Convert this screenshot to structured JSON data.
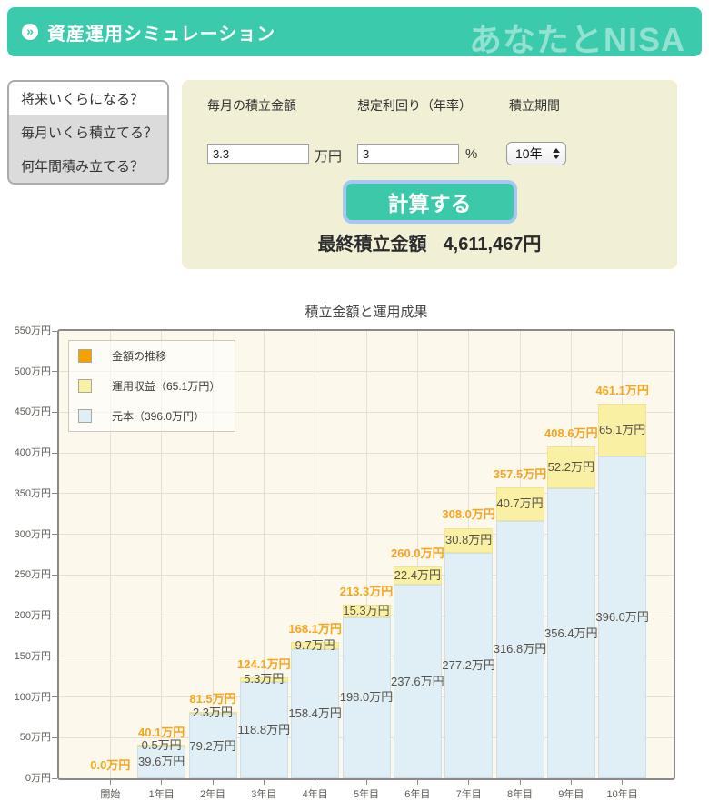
{
  "header": {
    "title": "資産運用シミュレーション",
    "brand": "あなたとNISA"
  },
  "sidebar": {
    "items": [
      {
        "label": "将来いくらになる？"
      },
      {
        "label": "毎月いくら積立てる？"
      },
      {
        "label": "何年間積み立てる？"
      }
    ]
  },
  "form": {
    "monthly_amount": {
      "label": "毎月の積立金額",
      "value": "3.3",
      "unit": "万円"
    },
    "rate": {
      "label": "想定利回り（年率）",
      "value": "3",
      "unit": "%"
    },
    "period": {
      "label": "積立期間",
      "value": "10年"
    },
    "calculate_label": "計算する"
  },
  "result": {
    "label": "最終積立金額",
    "value": "4,611,467円"
  },
  "chart_data": {
    "type": "bar",
    "stacked": true,
    "title": "積立金額と運用成果",
    "unit": "万円",
    "categories": [
      "開始",
      "1年目",
      "2年目",
      "3年目",
      "4年目",
      "5年目",
      "6年目",
      "7年目",
      "8年目",
      "9年目",
      "10年目"
    ],
    "series": [
      {
        "name": "金額の推移",
        "role": "total",
        "color": "#F5A200",
        "values": [
          0.0,
          40.1,
          81.5,
          124.1,
          168.1,
          213.3,
          260.0,
          308.0,
          357.5,
          408.6,
          461.1
        ]
      },
      {
        "name": "運用収益（65.1万円）",
        "role": "profit",
        "color": "#FAF0A3",
        "values": [
          0.0,
          0.5,
          2.3,
          5.3,
          9.7,
          15.3,
          22.4,
          30.8,
          40.7,
          52.2,
          65.1
        ]
      },
      {
        "name": "元本（396.0万円）",
        "role": "principal",
        "color": "#E0EEF5",
        "values": [
          0.0,
          39.6,
          79.2,
          118.8,
          158.4,
          198.0,
          237.6,
          277.2,
          316.8,
          356.4,
          396.0
        ]
      }
    ],
    "ylim": [
      0,
      550
    ],
    "ytick_step": 50,
    "grid": true,
    "legend_position": "top-left"
  }
}
